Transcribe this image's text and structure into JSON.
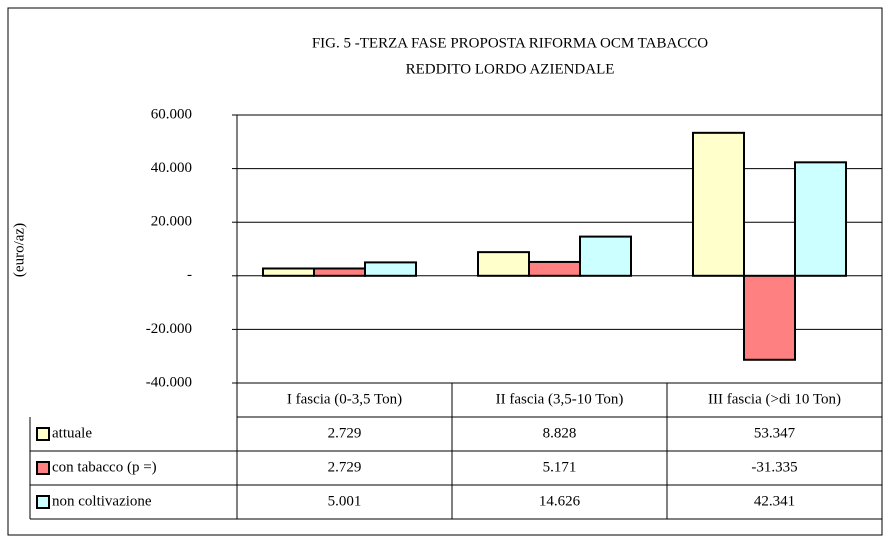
{
  "chart_data": {
    "type": "bar",
    "title": "FIG. 5 -TERZA FASE PROPOSTA RIFORMA OCM TABACCO",
    "subtitle": "REDDITO LORDO AZIENDALE",
    "y_label": "(euro/az)",
    "categories": [
      "I fascia (0-3,5 Ton)",
      "II fascia (3,5-10 Ton)",
      "III fascia (>di 10 Ton)"
    ],
    "series": [
      {
        "name": "attuale",
        "color": "#ffffcc",
        "values": [
          2729,
          8828,
          53347
        ],
        "value_labels": [
          "2.729",
          "8.828",
          "53.347"
        ]
      },
      {
        "name": "con tabacco (p =)",
        "color": "#ff8080",
        "values": [
          2729,
          5171,
          -31335
        ],
        "value_labels": [
          "2.729",
          "5.171",
          "-31.335"
        ]
      },
      {
        "name": "non coltivazione",
        "color": "#ccffff",
        "values": [
          5001,
          14626,
          42341
        ],
        "value_labels": [
          "5.001",
          "14.626",
          "42.341"
        ]
      }
    ],
    "ylim": [
      -40000,
      60000
    ],
    "yticks": [
      {
        "value": -40000,
        "label": "-40.000"
      },
      {
        "value": -20000,
        "label": "-20.000"
      },
      {
        "value": 0,
        "label": "-"
      },
      {
        "value": 20000,
        "label": "20.000"
      },
      {
        "value": 40000,
        "label": "40.000"
      },
      {
        "value": 60000,
        "label": "60.000"
      }
    ],
    "grid": true
  }
}
